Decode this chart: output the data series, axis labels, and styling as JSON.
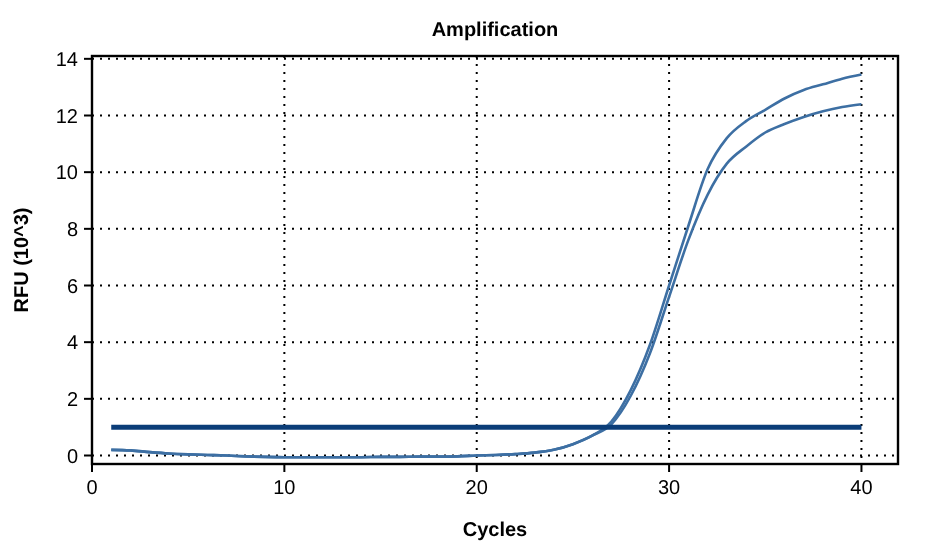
{
  "chart_data": {
    "type": "line",
    "title": "Amplification",
    "xlabel": "Cycles",
    "ylabel": "RFU (10^3)",
    "x": [
      1,
      2,
      3,
      4,
      5,
      6,
      7,
      8,
      9,
      10,
      11,
      12,
      13,
      14,
      15,
      16,
      17,
      18,
      19,
      20,
      21,
      22,
      23,
      24,
      25,
      26,
      27,
      28,
      29,
      30,
      31,
      32,
      33,
      34,
      35,
      36,
      37,
      38,
      39,
      40
    ],
    "series": [
      {
        "color": "#3d6fa3",
        "values": [
          0.2,
          0.18,
          0.12,
          0.07,
          0.04,
          0.02,
          0,
          -0.03,
          -0.05,
          -0.06,
          -0.06,
          -0.06,
          -0.06,
          -0.06,
          -0.05,
          -0.05,
          -0.04,
          -0.04,
          -0.03,
          0,
          0.02,
          0.05,
          0.1,
          0.2,
          0.4,
          0.7,
          1.2,
          2.3,
          3.9,
          6,
          8.1,
          10.1,
          11.2,
          11.8,
          12.2,
          12.6,
          12.9,
          13.1,
          13.3,
          13.45
        ]
      },
      {
        "color": "#3d6fa3",
        "values": [
          0.2,
          0.18,
          0.12,
          0.07,
          0.04,
          0.02,
          0,
          -0.03,
          -0.05,
          -0.06,
          -0.06,
          -0.06,
          -0.06,
          -0.06,
          -0.05,
          -0.05,
          -0.04,
          -0.04,
          -0.03,
          0,
          0.02,
          0.05,
          0.1,
          0.2,
          0.4,
          0.7,
          1.1,
          2.1,
          3.6,
          5.6,
          7.6,
          9.2,
          10.3,
          10.9,
          11.4,
          11.7,
          11.95,
          12.15,
          12.3,
          12.4
        ]
      }
    ],
    "ref_lines": [
      {
        "axis": "y",
        "value": 1,
        "color": "#0b3d78"
      }
    ],
    "xlim": [
      0,
      41.9
    ],
    "xticks": [
      0,
      10,
      20,
      30,
      40
    ],
    "ylim": [
      -0.3,
      14.1
    ],
    "yticks": [
      0,
      2,
      4,
      6,
      8,
      10,
      12,
      14
    ],
    "grid": true,
    "marker": "none",
    "line_style": "solid"
  }
}
